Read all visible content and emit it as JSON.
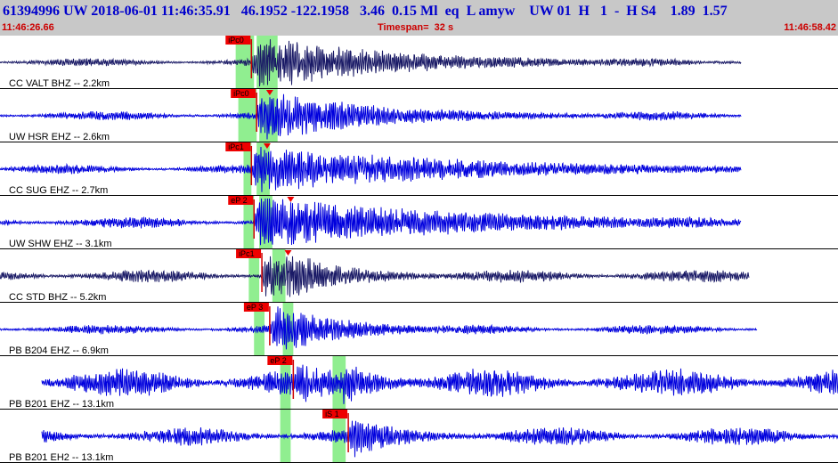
{
  "header": {
    "title": "61394996 UW 2018-06-01 11:46:35.91   46.1952 -122.1958   3.46  0.15 Ml  eq  L amyw    UW 01  H   1  -  H S4    1.89  1.57",
    "start_time": "11:46:26.66",
    "timespan": "Timespan=  32 s",
    "end_time": "11:46:58.42"
  },
  "colors": {
    "header_bg": "#c8c8c8",
    "title": "#0000cc",
    "time_labels": "#cc0000",
    "trace_blue": "#0000dd",
    "trace_navy": "#1a1a66",
    "pick_box": "#ee0000",
    "pick_line": "#cc0000",
    "window_highlight": "#90ee90"
  },
  "chart_data": {
    "type": "line",
    "x_axis": {
      "start": "11:46:26.66",
      "end": "11:46:58.42",
      "span_s": 32
    },
    "channels": [
      {
        "label": "CC VALT BHZ -- 2.2km",
        "color": "navy",
        "pick": "iPc0",
        "data_start_s": 0.0,
        "data_end_s": 28.3,
        "onset_s": 9.6,
        "s_onset_s": 10.8,
        "s_marker": false,
        "windows": [
          [
            9.0,
            9.7
          ],
          [
            9.8,
            10.6
          ]
        ],
        "amp": 1.0,
        "coda_s": 6,
        "bg": 0.16,
        "seed": 11
      },
      {
        "label": "UW HSR EHZ -- 2.6km",
        "color": "blue",
        "pick": "iPc0",
        "data_start_s": 0.0,
        "data_end_s": 28.3,
        "onset_s": 9.8,
        "s_onset_s": 10.3,
        "s_marker": true,
        "windows": [
          [
            9.1,
            9.8
          ],
          [
            9.9,
            10.6
          ]
        ],
        "amp": 1.0,
        "coda_s": 5,
        "bg": 0.18,
        "seed": 23
      },
      {
        "label": "CC SUG EHZ -- 2.7km",
        "color": "blue",
        "pick": "iPc1",
        "data_start_s": 0.0,
        "data_end_s": 28.3,
        "onset_s": 9.6,
        "s_onset_s": 10.2,
        "s_marker": true,
        "windows": [
          [
            9.3,
            9.6
          ],
          [
            9.8,
            10.3
          ]
        ],
        "amp": 0.9,
        "coda_s": 9,
        "bg": 0.18,
        "seed": 37
      },
      {
        "label": "UW SHW EHZ -- 3.1km",
        "color": "blue",
        "pick": "eP 2",
        "data_start_s": 0.0,
        "data_end_s": 28.3,
        "onset_s": 9.7,
        "s_onset_s": 11.1,
        "s_marker": true,
        "windows": [
          [
            9.3,
            9.7
          ],
          [
            9.9,
            10.4
          ]
        ],
        "amp": 1.0,
        "coda_s": 9,
        "bg": 0.22,
        "seed": 41
      },
      {
        "label": "CC STD BHZ -- 5.2km",
        "color": "navy",
        "pick": "iPc1",
        "data_start_s": 0.0,
        "data_end_s": 28.6,
        "onset_s": 10.0,
        "s_onset_s": 11.0,
        "s_marker": true,
        "windows": [
          [
            9.5,
            9.9
          ],
          [
            10.4,
            10.9
          ]
        ],
        "amp": 1.0,
        "coda_s": 3,
        "bg": 0.25,
        "seed": 53
      },
      {
        "label": "PB B204 EHZ -- 6.9km",
        "color": "blue",
        "pick": "eP 3",
        "data_start_s": 0.0,
        "data_end_s": 28.9,
        "onset_s": 10.3,
        "s_onset_s": 10.8,
        "s_marker": false,
        "windows": [
          [
            9.7,
            10.1
          ],
          [
            10.8,
            11.2
          ]
        ],
        "amp": 0.95,
        "coda_s": 3,
        "bg": 0.18,
        "seed": 67
      },
      {
        "label": "PB B201 EHZ -- 13.1km",
        "color": "blue",
        "pick": "eP 2",
        "data_start_s": 1.6,
        "data_end_s": 32.0,
        "onset_s": 11.2,
        "s_onset_s": 13.1,
        "s_marker": false,
        "windows": [
          [
            10.7,
            11.1
          ],
          [
            12.7,
            13.2
          ]
        ],
        "amp": 0.9,
        "coda_s": 2,
        "bg": 0.55,
        "seed": 79
      },
      {
        "label": "PB B201 EH2 -- 13.1km",
        "color": "blue",
        "pick": "iS 1",
        "data_start_s": 1.6,
        "data_end_s": 32.0,
        "onset_s": 13.3,
        "s_onset_s": 13.3,
        "s_marker": false,
        "windows": [
          [
            10.7,
            11.1
          ],
          [
            12.7,
            13.2
          ]
        ],
        "amp": 0.9,
        "coda_s": 2,
        "bg": 0.35,
        "seed": 83
      }
    ]
  }
}
